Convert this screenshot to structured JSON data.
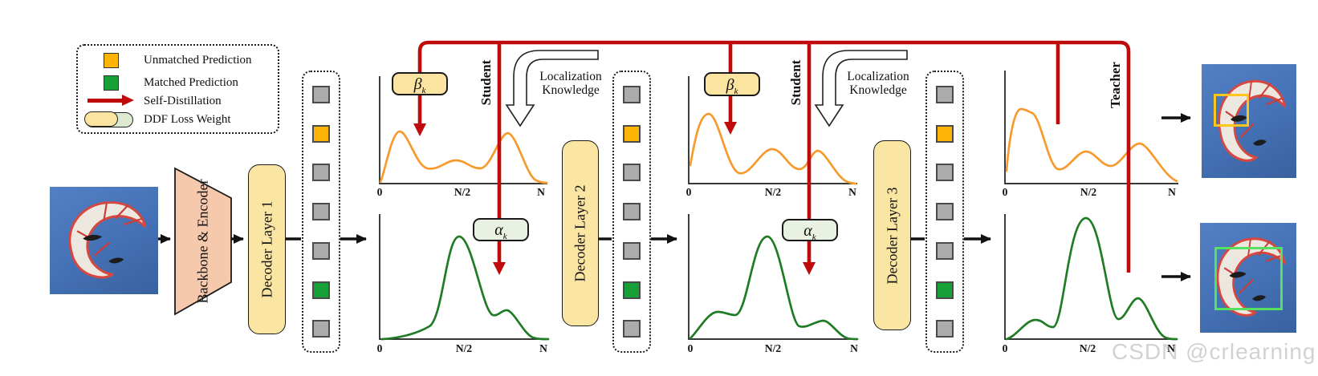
{
  "legend": {
    "items": [
      {
        "label": "Unmatched Prediction",
        "swatch": "orange-square",
        "color": "#ffb508"
      },
      {
        "label": "Matched Prediction",
        "swatch": "green-square",
        "color": "#17a038"
      },
      {
        "label": "Self-Distillation",
        "swatch": "red-arrow",
        "color": "#bf0b0b"
      },
      {
        "label": "DDF Loss Weight",
        "swatch": "two-tone-pill",
        "colors": [
          "#fbe3a0",
          "#dcead2"
        ]
      }
    ]
  },
  "pipeline": {
    "backbone": "Backbone\n& Encoder",
    "decoder1": "Decoder Layer 1",
    "decoder2": "Decoder Layer 2",
    "decoder3": "Decoder Layer 3"
  },
  "labels": {
    "student": "Student",
    "teacher": "Teacher",
    "localization": "Localization\nKnowledge",
    "beta": "β",
    "alpha": "α",
    "sub_k": "k"
  },
  "axis": {
    "t0": "0",
    "tmid": "N/2",
    "tend": "N"
  },
  "plots": [
    {
      "id": 1,
      "top_curve": "unmatched-distribution",
      "bottom_curve": "matched-distribution",
      "x_ticks": [
        "0",
        "N/2",
        "N"
      ]
    },
    {
      "id": 2,
      "top_curve": "unmatched-distribution",
      "bottom_curve": "matched-distribution",
      "x_ticks": [
        "0",
        "N/2",
        "N"
      ]
    },
    {
      "id": 3,
      "top_curve": "unmatched-distribution",
      "bottom_curve": "matched-distribution",
      "x_ticks": [
        "0",
        "N/2",
        "N"
      ]
    }
  ],
  "queries": {
    "pattern": [
      "gray",
      "orange",
      "gray",
      "gray",
      "gray",
      "green",
      "gray"
    ]
  },
  "colors": {
    "self_distillation_red": "#bf0b0b",
    "unmatched_curve_orange": "#f79a2e",
    "matched_curve_green": "#1f7b24",
    "panel_yellow": "#fbe5a3",
    "alpha_box_green": "#e8f1e2",
    "backbone_salmon": "#f7c9ac",
    "query_gray": "#ababab",
    "bbox_unmatched": "#ffc61a",
    "bbox_matched": "#57e060"
  },
  "watermark": "CSDN @crlearning"
}
